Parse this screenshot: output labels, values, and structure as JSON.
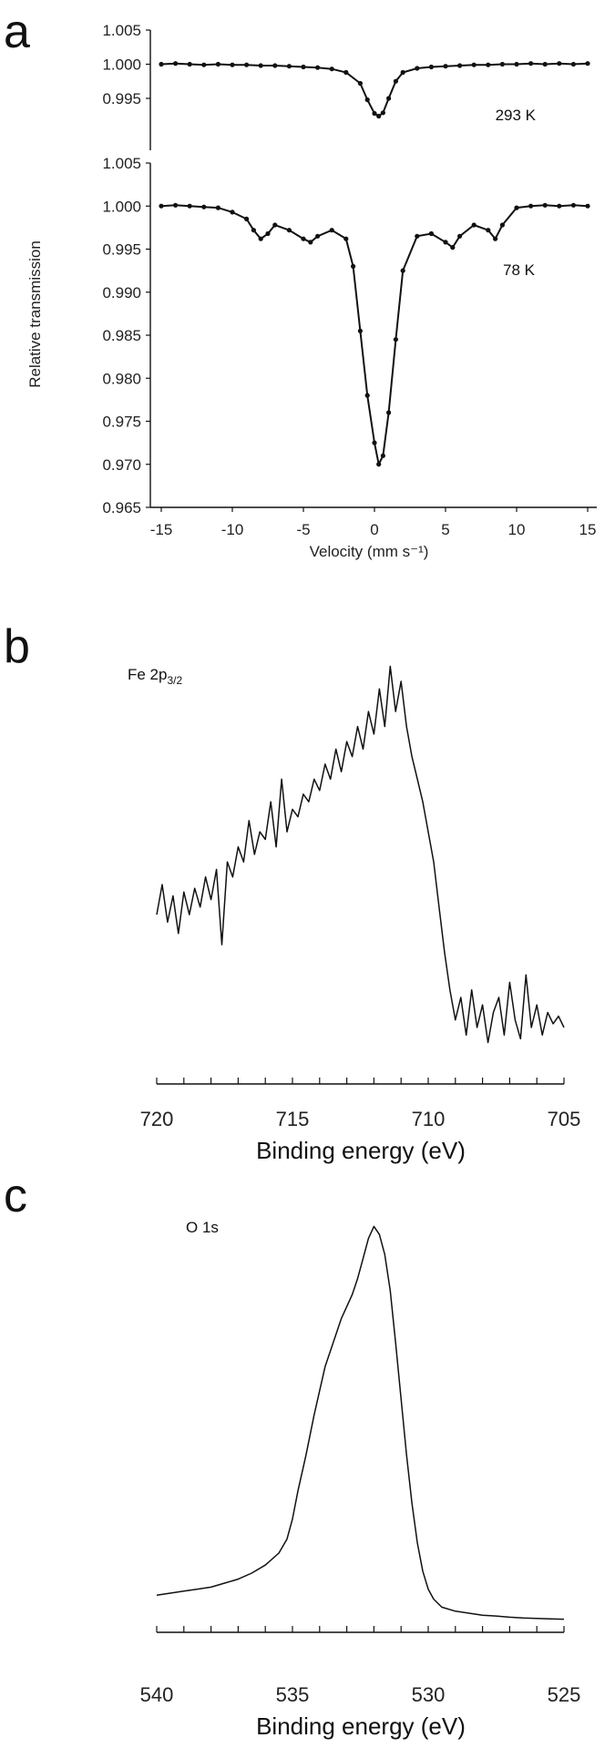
{
  "panels": {
    "a": {
      "letter": "a"
    },
    "b": {
      "letter": "b"
    },
    "c": {
      "letter": "c"
    }
  },
  "chart_data": [
    {
      "id": "a",
      "type": "scatter",
      "xlabel": "Velocity (mm s⁻¹)",
      "ylabel": "Relative transmission",
      "xlim": [
        -15,
        15
      ],
      "x_ticks": [
        "-15",
        "-10",
        "-5",
        "0",
        "5",
        "10",
        "15"
      ],
      "subplots": [
        {
          "label": "293 K",
          "ylim": [
            0.992,
            1.005
          ],
          "y_ticks": [
            "1.005",
            "1.000",
            "0.995"
          ],
          "series": [
            {
              "style": "points+fit",
              "x": [
                -15,
                -14,
                -13,
                -12,
                -11,
                -10,
                -9,
                -8,
                -7,
                -6,
                -5,
                -4,
                -3,
                -2,
                -1,
                -0.5,
                0,
                0.3,
                0.6,
                1,
                1.5,
                2,
                3,
                4,
                5,
                6,
                7,
                8,
                9,
                10,
                11,
                12,
                13,
                14,
                15
              ],
              "y": [
                1.0,
                1.0001,
                1.0,
                0.9999,
                1.0,
                0.9999,
                0.9999,
                0.9998,
                0.9998,
                0.9997,
                0.9996,
                0.9995,
                0.9993,
                0.9988,
                0.9972,
                0.9948,
                0.9928,
                0.9924,
                0.9929,
                0.995,
                0.9975,
                0.9988,
                0.9994,
                0.9996,
                0.9997,
                0.9998,
                0.9999,
                0.9999,
                1.0,
                1.0,
                1.0001,
                1.0,
                1.0001,
                1.0,
                1.0001
              ]
            }
          ]
        },
        {
          "label": "78 K",
          "ylim": [
            0.965,
            1.005
          ],
          "y_ticks": [
            "1.005",
            "1.000",
            "0.995",
            "0.990",
            "0.985",
            "0.980",
            "0.975",
            "0.970",
            "0.965"
          ],
          "series": [
            {
              "style": "points+fit",
              "x": [
                -15,
                -14,
                -13,
                -12,
                -11,
                -10,
                -9,
                -8.5,
                -8,
                -7.5,
                -7,
                -6,
                -5,
                -4.5,
                -4,
                -3,
                -2,
                -1.5,
                -1,
                -0.5,
                0,
                0.3,
                0.6,
                1,
                1.5,
                2,
                3,
                4,
                5,
                5.5,
                6,
                7,
                8,
                8.5,
                9,
                10,
                11,
                12,
                13,
                14,
                15
              ],
              "y": [
                1.0,
                1.0001,
                1.0,
                0.9999,
                0.9998,
                0.9993,
                0.9985,
                0.9972,
                0.9962,
                0.9968,
                0.9978,
                0.9972,
                0.9962,
                0.9958,
                0.9965,
                0.9972,
                0.9962,
                0.993,
                0.9855,
                0.978,
                0.9725,
                0.97,
                0.971,
                0.976,
                0.9845,
                0.9925,
                0.9965,
                0.9968,
                0.9958,
                0.9952,
                0.9965,
                0.9978,
                0.9972,
                0.9962,
                0.9978,
                0.9998,
                1.0,
                1.0001,
                1.0,
                1.0001,
                1.0
              ]
            }
          ]
        }
      ]
    },
    {
      "id": "b",
      "type": "line",
      "annotation": {
        "base": "Fe 2p",
        "sub": "3/2"
      },
      "xlabel": "Binding energy (eV)",
      "xlim": [
        720,
        705
      ],
      "x_ticks": [
        "720",
        "715",
        "710",
        "705"
      ],
      "ylim": [
        0,
        1
      ],
      "series": [
        {
          "style": "line",
          "x": [
            720,
            719.8,
            719.6,
            719.4,
            719.2,
            719.0,
            718.8,
            718.6,
            718.4,
            718.2,
            718.0,
            717.8,
            717.6,
            717.4,
            717.2,
            717.0,
            716.8,
            716.6,
            716.4,
            716.2,
            716.0,
            715.8,
            715.6,
            715.4,
            715.2,
            715.0,
            714.8,
            714.6,
            714.4,
            714.2,
            714.0,
            713.8,
            713.6,
            713.4,
            713.2,
            713.0,
            712.8,
            712.6,
            712.4,
            712.2,
            712.0,
            711.8,
            711.6,
            711.4,
            711.2,
            711.0,
            710.8,
            710.6,
            710.4,
            710.2,
            710.0,
            709.8,
            709.6,
            709.4,
            709.2,
            709.0,
            708.8,
            708.6,
            708.4,
            708.2,
            708.0,
            707.8,
            707.6,
            707.4,
            707.2,
            707.0,
            706.8,
            706.6,
            706.4,
            706.2,
            706.0,
            705.8,
            705.6,
            705.4,
            705.2,
            705.0
          ],
          "y": [
            0.3,
            0.38,
            0.28,
            0.35,
            0.25,
            0.36,
            0.3,
            0.37,
            0.32,
            0.4,
            0.34,
            0.42,
            0.22,
            0.44,
            0.4,
            0.48,
            0.44,
            0.55,
            0.46,
            0.52,
            0.5,
            0.6,
            0.48,
            0.66,
            0.52,
            0.58,
            0.56,
            0.62,
            0.6,
            0.66,
            0.63,
            0.7,
            0.66,
            0.74,
            0.68,
            0.76,
            0.72,
            0.8,
            0.74,
            0.84,
            0.78,
            0.9,
            0.8,
            0.96,
            0.84,
            0.92,
            0.8,
            0.72,
            0.66,
            0.6,
            0.52,
            0.44,
            0.32,
            0.2,
            0.1,
            0.02,
            0.08,
            -0.02,
            0.1,
            0.0,
            0.06,
            -0.04,
            0.04,
            0.08,
            -0.02,
            0.12,
            0.02,
            -0.03,
            0.14,
            0.0,
            0.06,
            -0.02,
            0.04,
            0.01,
            0.03,
            0.0
          ]
        }
      ]
    },
    {
      "id": "c",
      "type": "line",
      "annotation": {
        "base": "O 1s"
      },
      "xlabel": "Binding energy (eV)",
      "xlim": [
        540,
        525
      ],
      "x_ticks": [
        "540",
        "535",
        "530",
        "525"
      ],
      "ylim": [
        0,
        1
      ],
      "series": [
        {
          "style": "line",
          "x": [
            540,
            539.5,
            539,
            538.5,
            538,
            537.5,
            537,
            536.5,
            536,
            535.5,
            535.2,
            535,
            534.8,
            534.5,
            534.2,
            534,
            533.8,
            533.5,
            533.2,
            533,
            532.8,
            532.6,
            532.4,
            532.2,
            532,
            531.8,
            531.6,
            531.4,
            531.2,
            531,
            530.8,
            530.6,
            530.4,
            530.2,
            530,
            529.8,
            529.5,
            529,
            528.5,
            528,
            527.5,
            527,
            526.5,
            526,
            525.5,
            525
          ],
          "y": [
            0.07,
            0.075,
            0.08,
            0.085,
            0.09,
            0.1,
            0.11,
            0.125,
            0.145,
            0.175,
            0.21,
            0.26,
            0.33,
            0.42,
            0.52,
            0.58,
            0.64,
            0.7,
            0.76,
            0.79,
            0.82,
            0.86,
            0.91,
            0.96,
            0.99,
            0.97,
            0.92,
            0.83,
            0.7,
            0.56,
            0.42,
            0.3,
            0.2,
            0.13,
            0.085,
            0.06,
            0.04,
            0.03,
            0.025,
            0.02,
            0.018,
            0.015,
            0.013,
            0.012,
            0.011,
            0.01
          ]
        }
      ]
    }
  ]
}
